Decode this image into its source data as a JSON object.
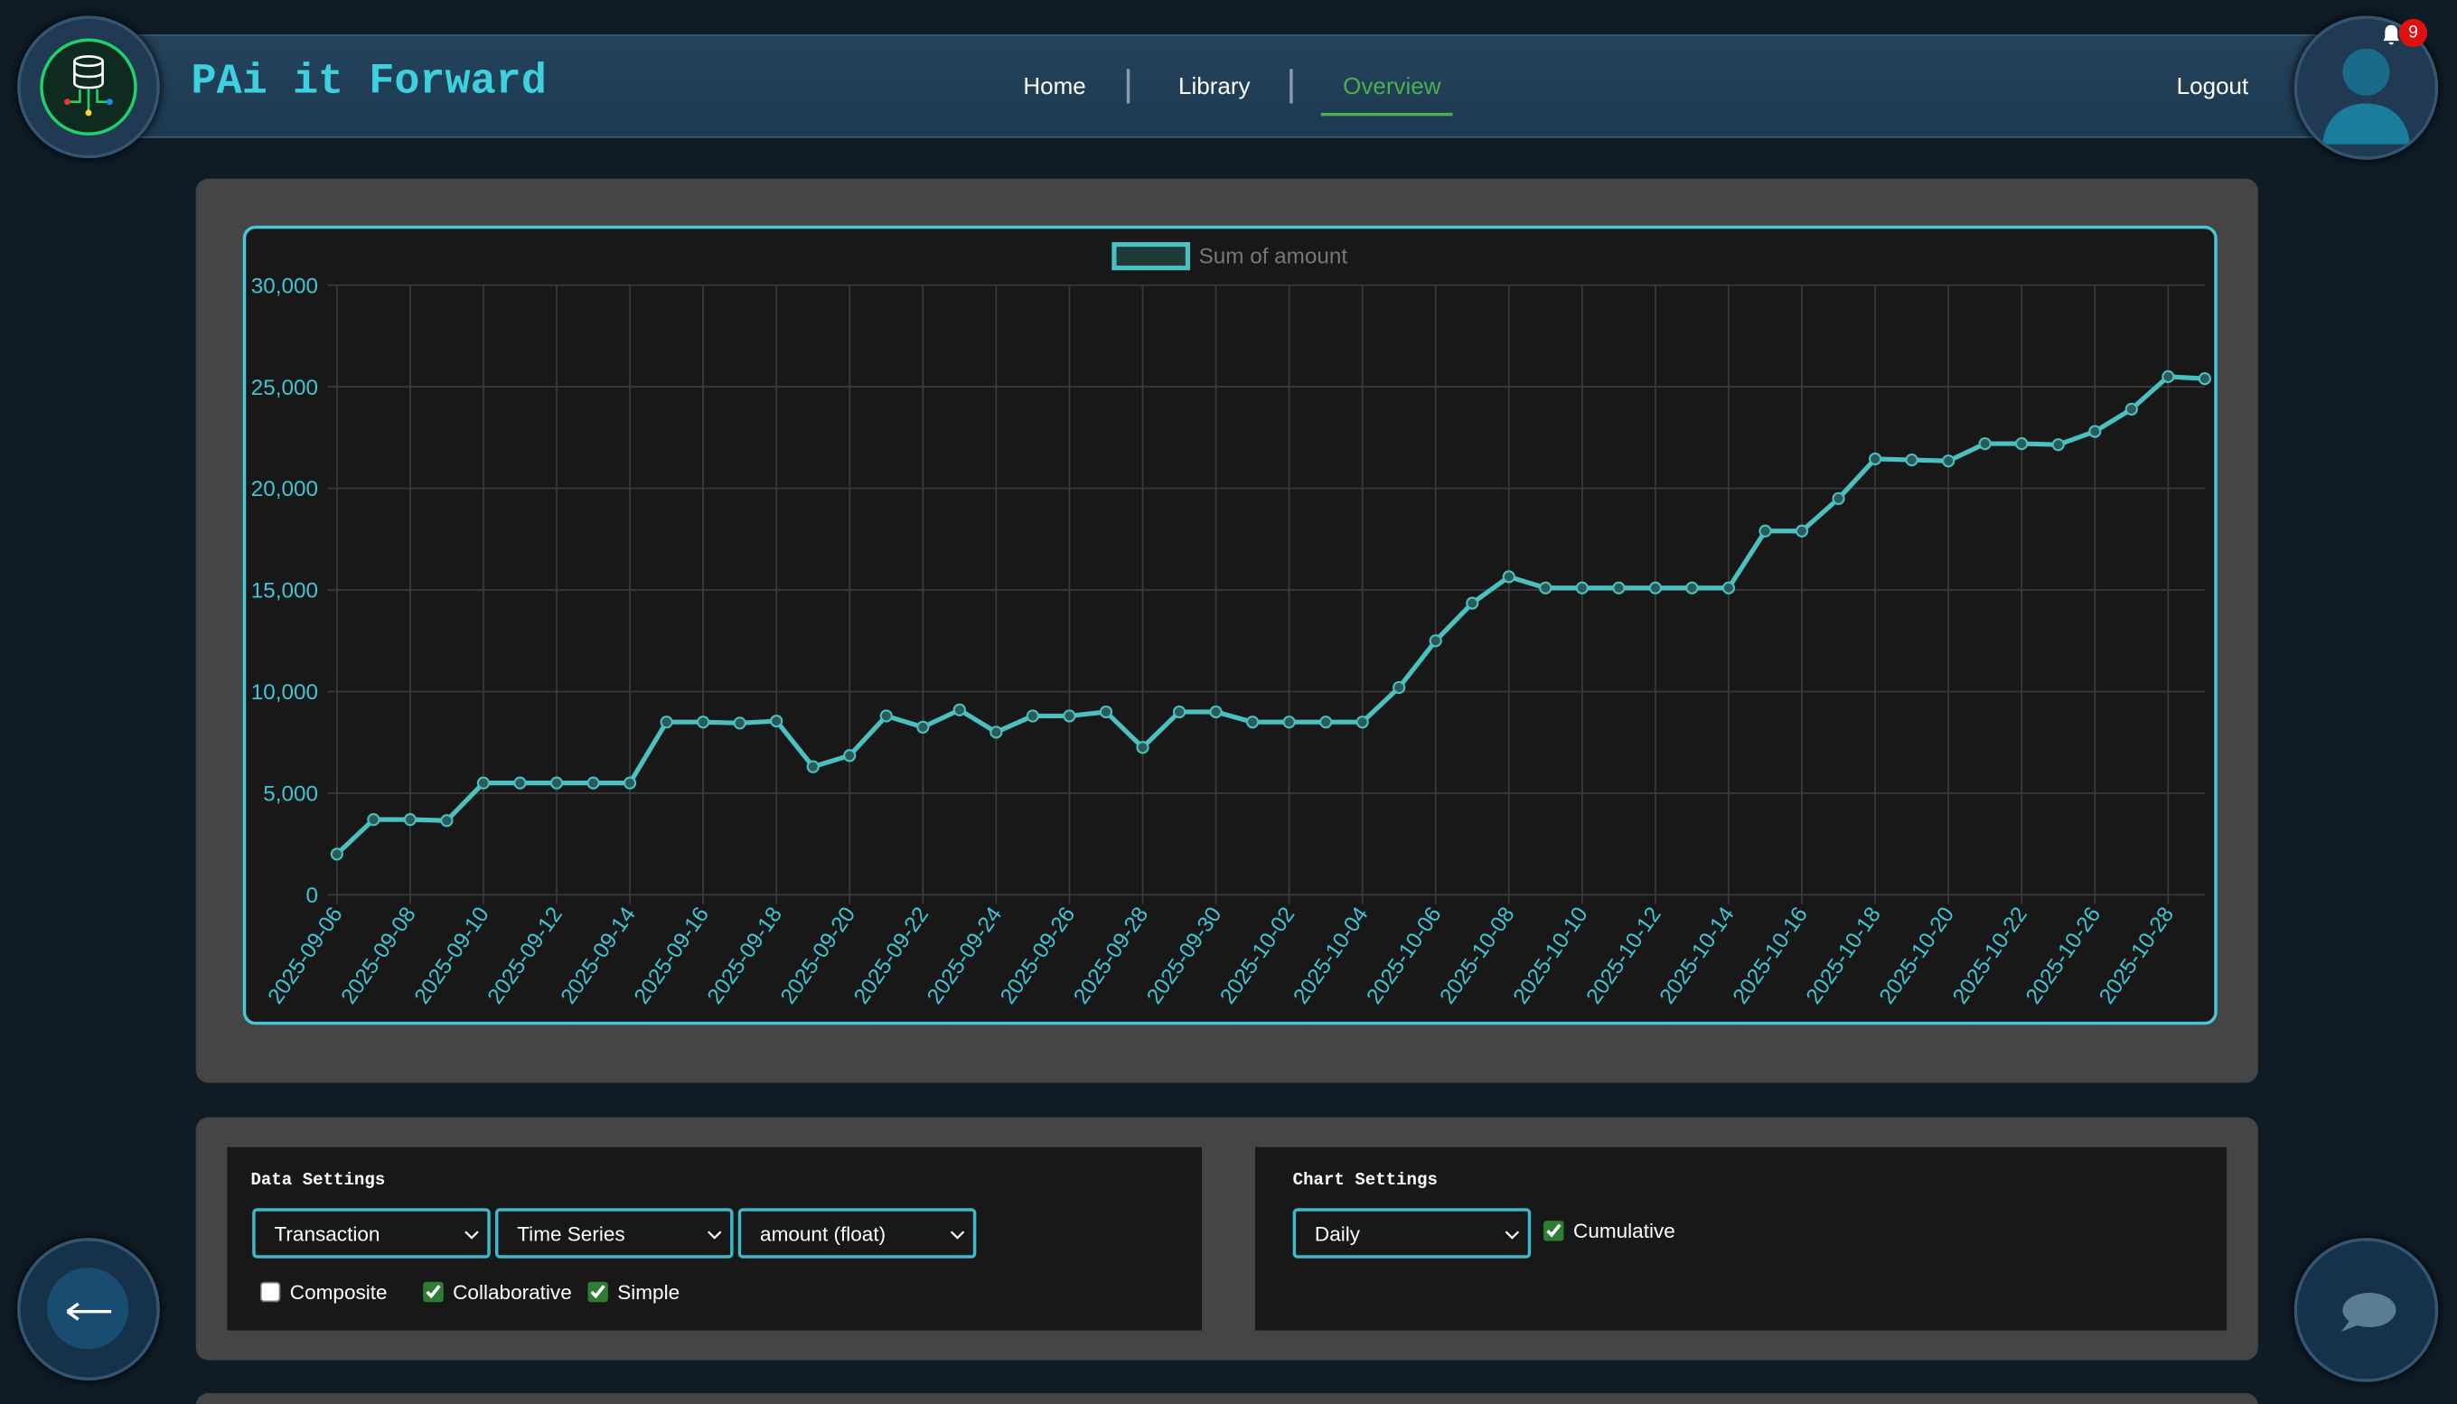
{
  "header": {
    "title": "PAi it Forward",
    "nav": [
      "Home",
      "Library",
      "Overview"
    ],
    "active_nav": 2,
    "logout": "Logout",
    "notifications": "9"
  },
  "chart_data": {
    "type": "line",
    "categories": [
      "2025-09-06",
      null,
      "2025-09-08",
      null,
      "2025-09-10",
      null,
      "2025-09-12",
      null,
      "2025-09-14",
      null,
      "2025-09-16",
      null,
      "2025-09-18",
      null,
      "2025-09-20",
      null,
      "2025-09-22",
      null,
      "2025-09-24",
      null,
      "2025-09-26",
      null,
      "2025-09-28",
      null,
      "2025-09-30",
      null,
      "2025-10-02",
      null,
      "2025-10-04",
      null,
      "2025-10-06",
      null,
      "2025-10-08",
      null,
      "2025-10-10",
      null,
      "2025-10-12",
      null,
      "2025-10-14",
      null,
      "2025-10-16",
      null,
      "2025-10-18",
      null,
      "2025-10-20",
      null,
      "2025-10-22",
      null,
      "2025-10-26",
      null,
      "2025-10-28",
      null
    ],
    "series": [
      {
        "name": "Sum of amount",
        "color": "#4bc0c0",
        "values": [
          2000,
          3700,
          3700,
          3650,
          5500,
          5500,
          5500,
          5500,
          5500,
          8500,
          8500,
          8450,
          8550,
          6300,
          6850,
          8800,
          8250,
          9100,
          8000,
          8800,
          8800,
          9000,
          7250,
          9000,
          9000,
          8500,
          8500,
          8500,
          8500,
          10200,
          12500,
          14350,
          15650,
          15100,
          15100,
          15100,
          15100,
          15100,
          15100,
          17900,
          17900,
          19500,
          21450,
          21400,
          21350,
          22200,
          22200,
          22150,
          22800,
          23900,
          25500,
          25400
        ]
      }
    ],
    "ylim": [
      0,
      30000
    ],
    "yticks": [
      0,
      {
        "value": 5000,
        "label": "5,000"
      },
      {
        "value": 10000,
        "label": "10,000"
      },
      {
        "value": 15000,
        "label": "15,000"
      },
      {
        "value": 20000,
        "label": "20,000"
      },
      {
        "value": 25000,
        "label": "25,000"
      },
      {
        "value": 30000,
        "label": "30,000"
      }
    ],
    "grid": true,
    "legend": "top"
  },
  "data_settings": {
    "title": "Data Settings",
    "selects": [
      "Transaction",
      "Time Series",
      "amount (float)"
    ],
    "checkboxes": [
      {
        "label": "Composite",
        "checked": false
      },
      {
        "label": "Collaborative",
        "checked": true
      },
      {
        "label": "Simple",
        "checked": true
      }
    ]
  },
  "chart_settings": {
    "title": "Chart Settings",
    "select": "Daily",
    "checkbox": {
      "label": "Cumulative",
      "checked": true
    }
  }
}
